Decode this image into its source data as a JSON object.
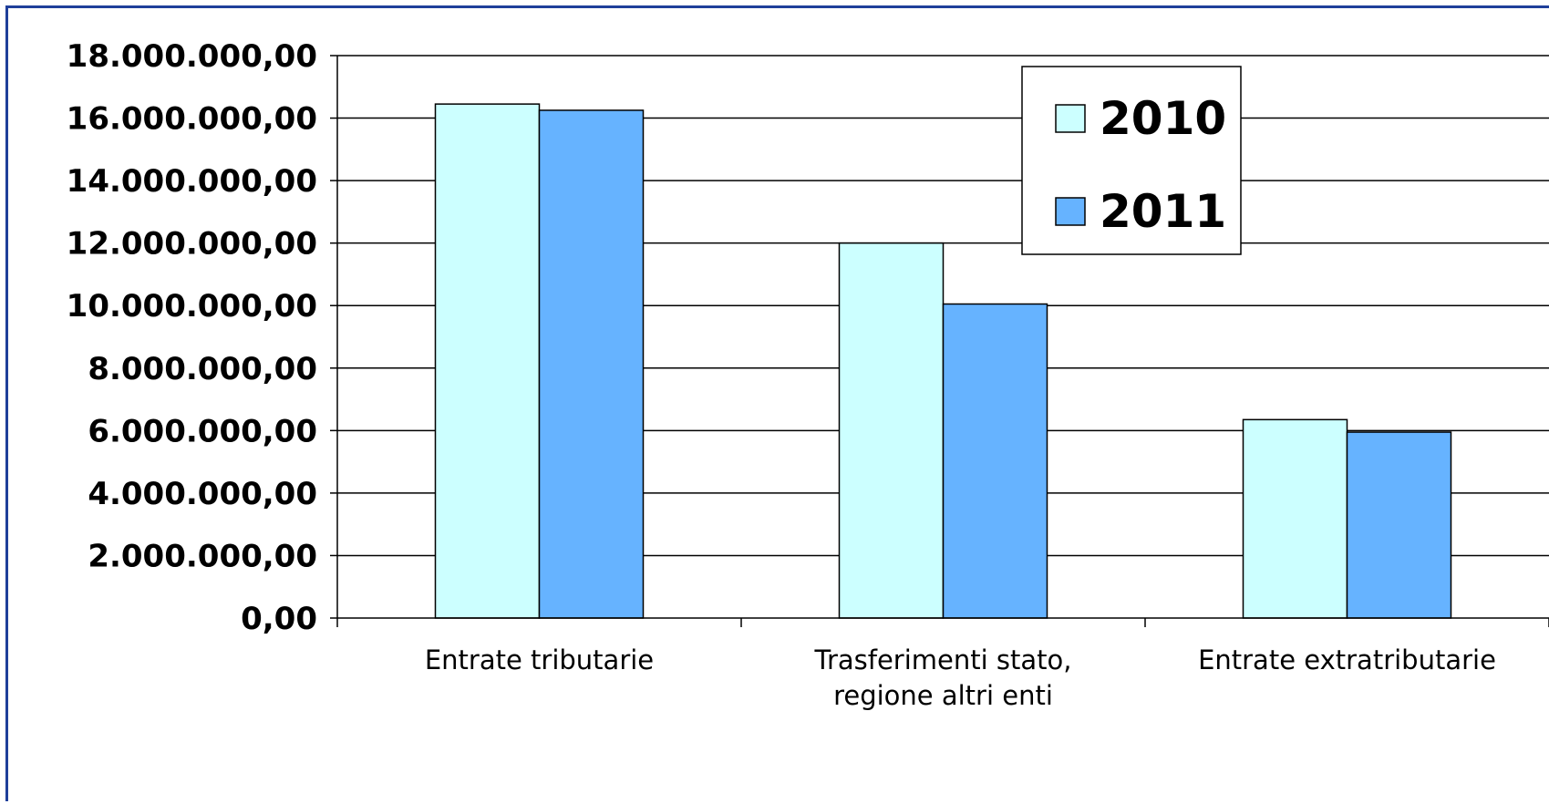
{
  "colors": {
    "series_2010": "#ccffff",
    "series_2011": "#66b3ff",
    "border": "#1f3f9a",
    "axis": "#000000"
  },
  "chart_data": {
    "type": "bar",
    "title": "",
    "xlabel": "",
    "ylabel": "",
    "ylim": [
      0,
      18000000
    ],
    "y_ticks": [
      {
        "value": 0,
        "label": "0,00"
      },
      {
        "value": 2000000,
        "label": "2.000.000,00"
      },
      {
        "value": 4000000,
        "label": "4.000.000,00"
      },
      {
        "value": 6000000,
        "label": "6.000.000,00"
      },
      {
        "value": 8000000,
        "label": "8.000.000,00"
      },
      {
        "value": 10000000,
        "label": "10.000.000,00"
      },
      {
        "value": 12000000,
        "label": "12.000.000,00"
      },
      {
        "value": 14000000,
        "label": "14.000.000,00"
      },
      {
        "value": 16000000,
        "label": "16.000.000,00"
      },
      {
        "value": 18000000,
        "label": "18.000.000,00"
      }
    ],
    "grid": true,
    "legend_position": "top-right",
    "categories": [
      [
        "Entrate tributarie"
      ],
      [
        "Trasferimenti stato,",
        "regione altri enti"
      ],
      [
        "Entrate extratributarie"
      ]
    ],
    "series": [
      {
        "name": "2010",
        "values": [
          16450000,
          12000000,
          6350000
        ]
      },
      {
        "name": "2011",
        "values": [
          16250000,
          10050000,
          5950000
        ]
      }
    ]
  }
}
